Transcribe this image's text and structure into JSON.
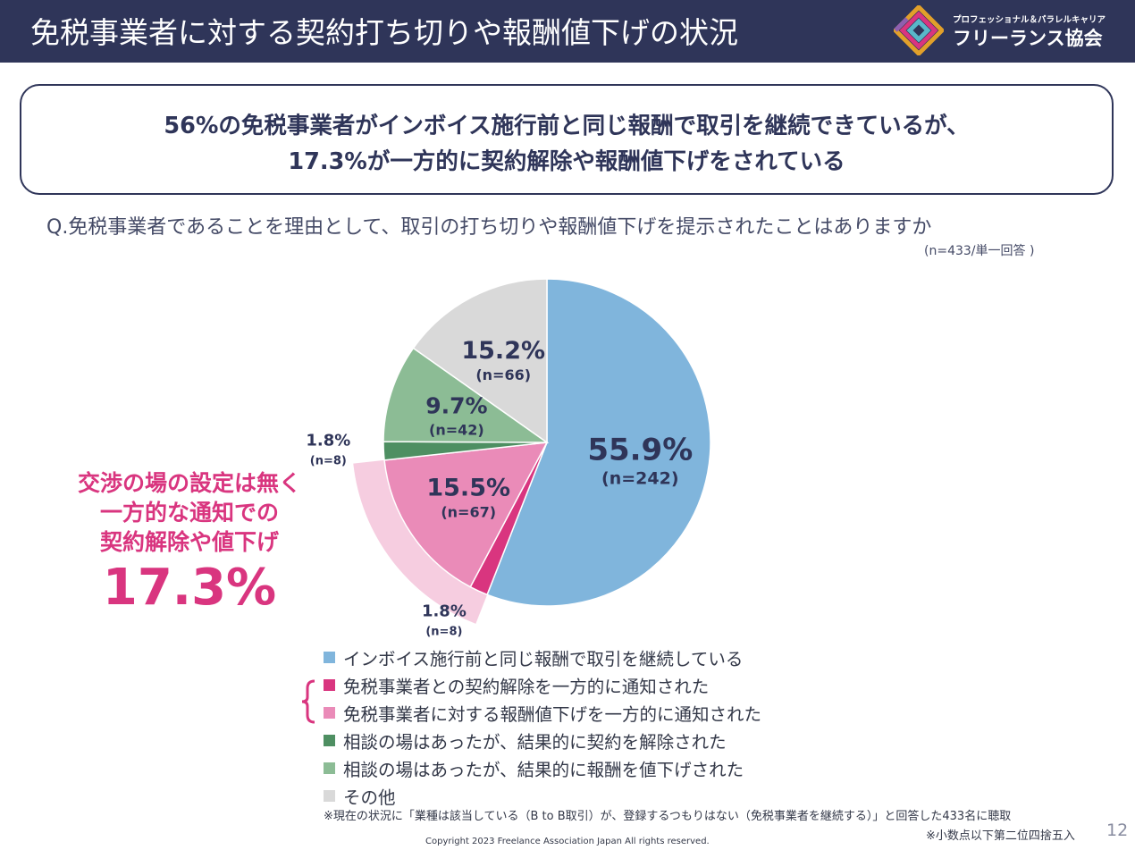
{
  "header": {
    "title": "免税事業者に対する契約打ち切りや報酬値下げの状況",
    "logo_sub": "プロフェッショナル＆パラレルキャリア",
    "logo_main": "フリーランス協会"
  },
  "headline": {
    "line1": "56%の免税事業者がインボイス施行前と同じ報酬で取引を継続できているが、",
    "line2": "17.3%が一方的に契約解除や報酬値下げをされている"
  },
  "question": "Q.免税事業者であることを理由として、取引の打ち切りや報酬値下げを提示されたことはありますか",
  "sample_note": "(n=433/単一回答 )",
  "callout": {
    "line1": "交渉の場の設定は無く",
    "line2": "一方的な通知での",
    "line3": "契約解除や値下げ",
    "value": "17.3%"
  },
  "chart_data": {
    "type": "pie",
    "start": "top",
    "direction": "clockwise",
    "slices": [
      {
        "name": "インボイス施行前と同じ報酬で取引を継続している",
        "value": 55.9,
        "label": "55.9%",
        "n_label": "(n=242)",
        "color": "#80b5dc"
      },
      {
        "name": "免税事業者との契約解除を一方的に通知された",
        "value": 1.8,
        "label": "1.8%",
        "n_label": "(n=8)",
        "color": "#d9357f"
      },
      {
        "name": "免税事業者に対する報酬値下げを一方的に通知された",
        "value": 15.5,
        "label": "15.5%",
        "n_label": "(n=67)",
        "color": "#ea8bb8"
      },
      {
        "name": "相談の場はあったが、結果的に契約を解除された",
        "value": 1.8,
        "label": "1.8%",
        "n_label": "(n=8)",
        "color": "#4e8f62"
      },
      {
        "name": "相談の場はあったが、結果的に報酬を値下げされた",
        "value": 9.7,
        "label": "9.7%",
        "n_label": "(n=42)",
        "color": "#8cbc95"
      },
      {
        "name": "その他",
        "value": 15.2,
        "label": "15.2%",
        "n_label": "(n=66)",
        "color": "#d9d9d9"
      }
    ],
    "highlight": {
      "slices": [
        1,
        2
      ],
      "color": "#f6cde0"
    }
  },
  "footer": {
    "note1": "※現在の状況に「業種は該当している（B to B取引）が、登録するつもりはない（免税事業者を継続する）」と回答した433名に聴取",
    "note2": "※小数点以下第二位四捨五入",
    "page": "12",
    "copyright": "Copyright 2023 Freelance Association Japan  All rights reserved."
  }
}
